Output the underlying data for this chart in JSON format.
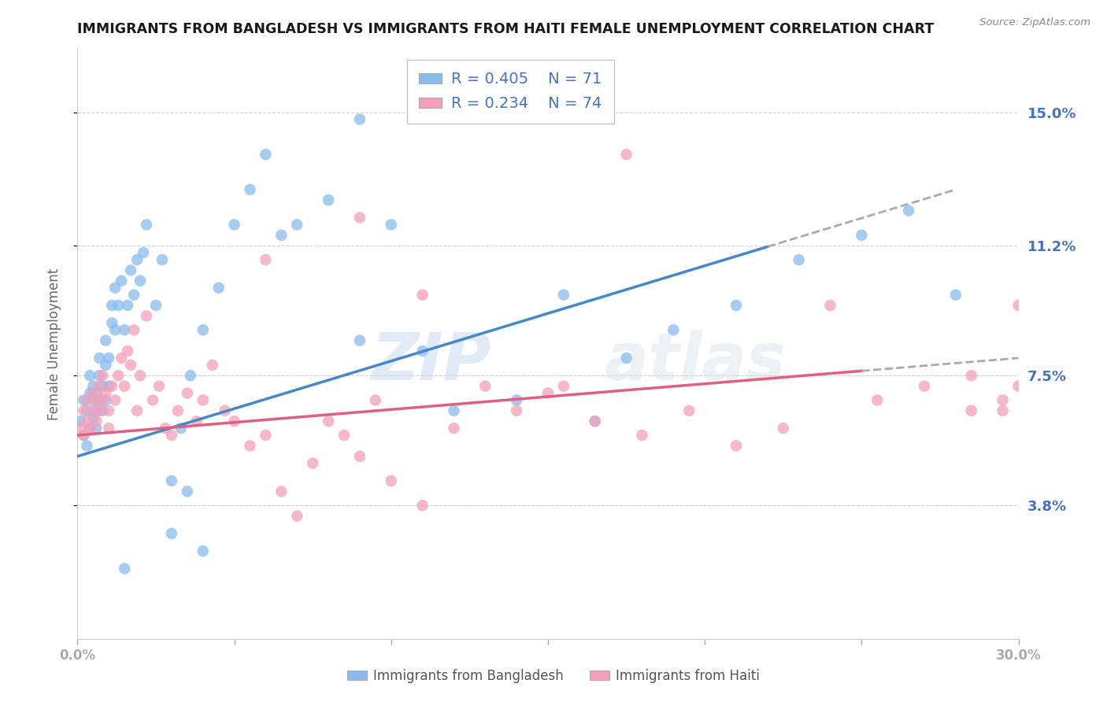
{
  "title": "IMMIGRANTS FROM BANGLADESH VS IMMIGRANTS FROM HAITI FEMALE UNEMPLOYMENT CORRELATION CHART",
  "source": "Source: ZipAtlas.com",
  "ylabel": "Female Unemployment",
  "xlim": [
    0.0,
    0.3
  ],
  "ylim": [
    0.0,
    0.168
  ],
  "yticks": [
    0.038,
    0.075,
    0.112,
    0.15
  ],
  "ytick_labels": [
    "3.8%",
    "7.5%",
    "11.2%",
    "15.0%"
  ],
  "xticks": [
    0.0,
    0.05,
    0.1,
    0.15,
    0.2,
    0.25,
    0.3
  ],
  "xtick_labels": [
    "0.0%",
    "",
    "",
    "",
    "",
    "",
    "30.0%"
  ],
  "legend_r1": "R = 0.405",
  "legend_n1": "N = 71",
  "legend_r2": "R = 0.234",
  "legend_n2": "N = 74",
  "color_bangladesh": "#88bbee",
  "color_haiti": "#f4a0b8",
  "trend_bangladesh_solid_color": "#4488cc",
  "trend_haiti_solid_color": "#e06080",
  "watermark_text": "ZIPatlas",
  "bg_color": "#ffffff",
  "grid_color": "#cccccc",
  "bangladesh_x": [
    0.001,
    0.002,
    0.002,
    0.003,
    0.003,
    0.004,
    0.004,
    0.004,
    0.005,
    0.005,
    0.005,
    0.006,
    0.006,
    0.006,
    0.007,
    0.007,
    0.007,
    0.008,
    0.008,
    0.009,
    0.009,
    0.009,
    0.01,
    0.01,
    0.011,
    0.011,
    0.012,
    0.012,
    0.013,
    0.014,
    0.015,
    0.016,
    0.017,
    0.018,
    0.019,
    0.02,
    0.021,
    0.022,
    0.025,
    0.027,
    0.03,
    0.033,
    0.036,
    0.04,
    0.045,
    0.05,
    0.055,
    0.06,
    0.065,
    0.07,
    0.08,
    0.09,
    0.1,
    0.11,
    0.12,
    0.14,
    0.155,
    0.165,
    0.175,
    0.19,
    0.21,
    0.23,
    0.25,
    0.265,
    0.28,
    0.09,
    0.12,
    0.03,
    0.035,
    0.04,
    0.015
  ],
  "bangladesh_y": [
    0.062,
    0.058,
    0.068,
    0.055,
    0.065,
    0.06,
    0.07,
    0.075,
    0.063,
    0.068,
    0.072,
    0.065,
    0.06,
    0.07,
    0.068,
    0.075,
    0.08,
    0.065,
    0.072,
    0.068,
    0.078,
    0.085,
    0.072,
    0.08,
    0.09,
    0.095,
    0.088,
    0.1,
    0.095,
    0.102,
    0.088,
    0.095,
    0.105,
    0.098,
    0.108,
    0.102,
    0.11,
    0.118,
    0.095,
    0.108,
    0.045,
    0.06,
    0.075,
    0.088,
    0.1,
    0.118,
    0.128,
    0.138,
    0.115,
    0.118,
    0.125,
    0.085,
    0.118,
    0.082,
    0.065,
    0.068,
    0.098,
    0.062,
    0.08,
    0.088,
    0.095,
    0.108,
    0.115,
    0.122,
    0.098,
    0.148,
    0.158,
    0.03,
    0.042,
    0.025,
    0.02
  ],
  "haiti_x": [
    0.001,
    0.002,
    0.002,
    0.003,
    0.003,
    0.004,
    0.005,
    0.005,
    0.006,
    0.006,
    0.007,
    0.007,
    0.008,
    0.008,
    0.009,
    0.01,
    0.01,
    0.011,
    0.012,
    0.013,
    0.014,
    0.015,
    0.016,
    0.017,
    0.018,
    0.019,
    0.02,
    0.022,
    0.024,
    0.026,
    0.028,
    0.03,
    0.032,
    0.035,
    0.038,
    0.04,
    0.043,
    0.047,
    0.05,
    0.055,
    0.06,
    0.065,
    0.07,
    0.075,
    0.08,
    0.085,
    0.09,
    0.095,
    0.1,
    0.11,
    0.12,
    0.13,
    0.14,
    0.15,
    0.165,
    0.18,
    0.195,
    0.21,
    0.225,
    0.24,
    0.255,
    0.27,
    0.285,
    0.295,
    0.3,
    0.155,
    0.06,
    0.09,
    0.11,
    0.175,
    0.285,
    0.295,
    0.3,
    0.128
  ],
  "haiti_y": [
    0.06,
    0.058,
    0.065,
    0.062,
    0.068,
    0.06,
    0.065,
    0.07,
    0.062,
    0.068,
    0.065,
    0.072,
    0.068,
    0.075,
    0.07,
    0.06,
    0.065,
    0.072,
    0.068,
    0.075,
    0.08,
    0.072,
    0.082,
    0.078,
    0.088,
    0.065,
    0.075,
    0.092,
    0.068,
    0.072,
    0.06,
    0.058,
    0.065,
    0.07,
    0.062,
    0.068,
    0.078,
    0.065,
    0.062,
    0.055,
    0.058,
    0.042,
    0.035,
    0.05,
    0.062,
    0.058,
    0.052,
    0.068,
    0.045,
    0.038,
    0.06,
    0.072,
    0.065,
    0.07,
    0.062,
    0.058,
    0.065,
    0.055,
    0.06,
    0.095,
    0.068,
    0.072,
    0.075,
    0.065,
    0.095,
    0.072,
    0.108,
    0.12,
    0.098,
    0.138,
    0.065,
    0.068,
    0.072,
    0.155
  ],
  "trend_bd_x0": 0.0,
  "trend_bd_y0": 0.052,
  "trend_bd_x1": 0.28,
  "trend_bd_y1": 0.128,
  "trend_bd_solid_end": 0.22,
  "trend_ht_x0": 0.0,
  "trend_ht_y0": 0.058,
  "trend_ht_x1": 0.3,
  "trend_ht_y1": 0.08,
  "trend_ht_solid_end": 0.25
}
